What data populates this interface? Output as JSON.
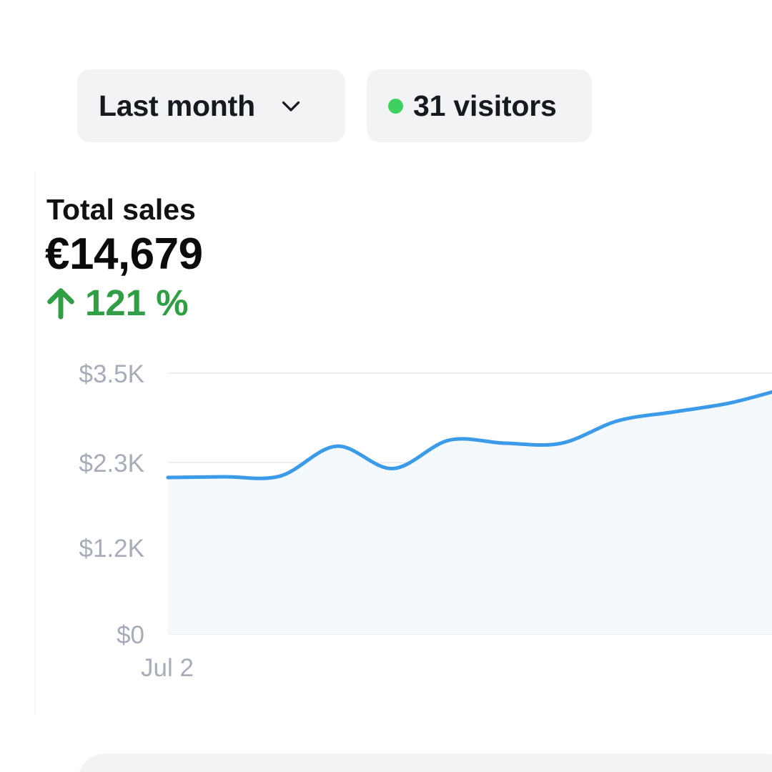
{
  "toolbar": {
    "period_label": "Last month",
    "visitors_label": "31 visitors",
    "live_dot_color": "#3fd160"
  },
  "metric": {
    "title": "Total sales",
    "value": "€14,679",
    "change": "121 %",
    "change_direction": "up",
    "change_color": "#2f9e44"
  },
  "chart_data": {
    "type": "area",
    "y_ticks": [
      "$3.5K",
      "$2.3K",
      "$1.2K",
      "$0"
    ],
    "y_tick_values": [
      3500,
      2300,
      1200,
      0
    ],
    "x_tick_labels": [
      "Jul 2"
    ],
    "ylim": [
      0,
      3500
    ],
    "grid": true,
    "line_color": "#3b9be8",
    "fill_color": "#f4f9fe",
    "series": [
      {
        "values": [
          2100,
          2110,
          2120,
          2520,
          2220,
          2600,
          2560,
          2560,
          2860,
          2980,
          3100,
          3300
        ]
      }
    ]
  }
}
